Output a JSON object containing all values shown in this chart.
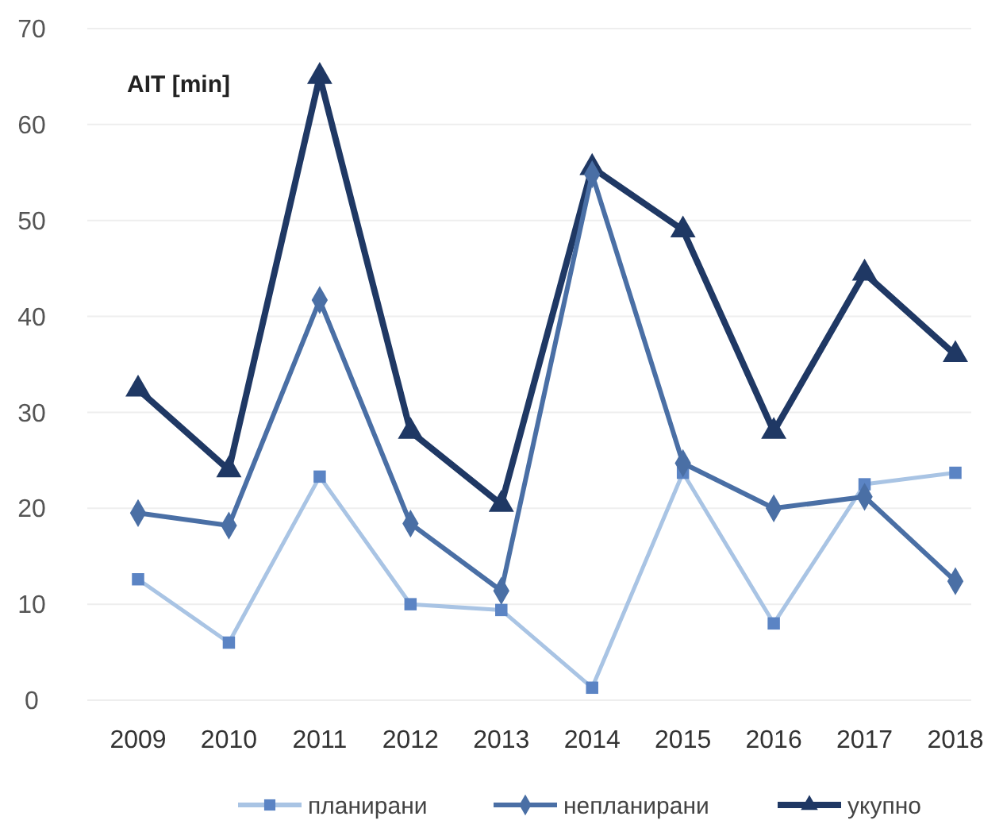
{
  "chart_data": {
    "type": "line",
    "ylabel": "AIT [min]",
    "categories": [
      "2009",
      "2010",
      "2011",
      "2012",
      "2013",
      "2014",
      "2015",
      "2016",
      "2017",
      "2018"
    ],
    "series": [
      {
        "name": "планирани",
        "color": "#a9c4e4",
        "marker": "square",
        "values": [
          12.6,
          6,
          23.3,
          10,
          9.4,
          1.3,
          23.7,
          8,
          22.5,
          23.7
        ]
      },
      {
        "name": "непланирани",
        "color": "#4a6fa5",
        "marker": "diamond",
        "values": [
          19.5,
          18.2,
          41.7,
          18.4,
          11.4,
          54.8,
          24.7,
          20,
          21.2,
          12.4
        ]
      },
      {
        "name": "укупно",
        "color": "#1f3864",
        "marker": "triangle",
        "values": [
          32.4,
          24,
          65,
          28,
          20.4,
          55.5,
          49,
          28,
          44.5,
          36
        ]
      }
    ],
    "ylim": [
      0,
      70
    ],
    "yticks": [
      0,
      10,
      20,
      30,
      40,
      50,
      60,
      70
    ],
    "grid": "y",
    "legend": "bottom",
    "line_style": "solid"
  }
}
